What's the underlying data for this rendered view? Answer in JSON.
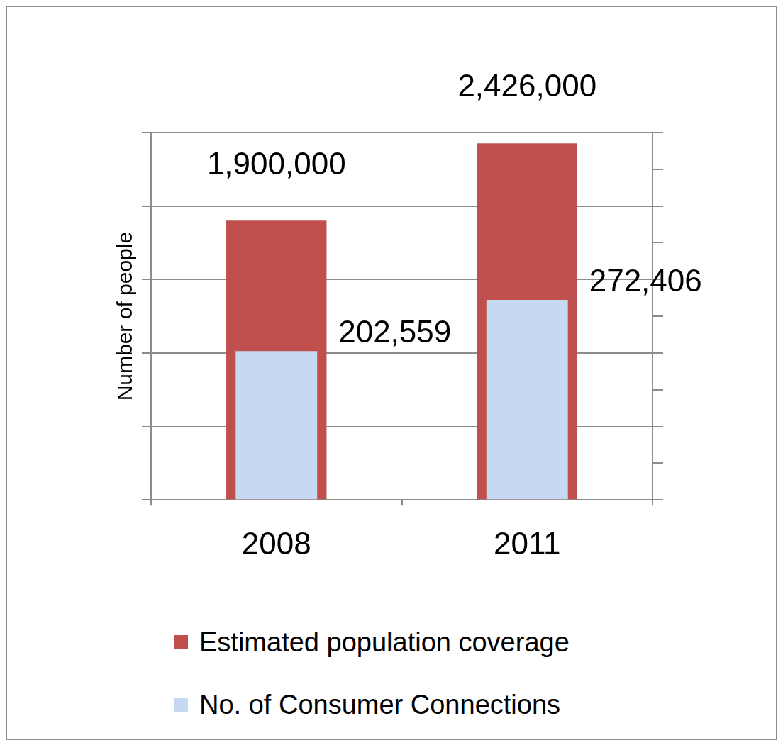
{
  "chart_data": {
    "type": "bar",
    "ylabel": "Number of people",
    "categories": [
      "2008",
      "2011"
    ],
    "series": [
      {
        "name": "Estimated population coverage",
        "color": "#c0504d",
        "values": [
          1900000,
          2426000
        ],
        "value_labels": [
          "1,900,000",
          "2,426,000"
        ]
      },
      {
        "name": "No. of Consumer Connections",
        "color": "#c6d9f0",
        "axis": "y2",
        "values": [
          202559,
          272406
        ],
        "value_labels": [
          "202,559",
          "272,406"
        ]
      }
    ],
    "ylim": [
      0,
      2500000
    ],
    "yticks": [
      0,
      500000,
      1000000,
      1500000,
      2000000,
      2500000
    ],
    "y2lim": [
      0,
      500000
    ],
    "y2ticks": [
      0,
      50000,
      100000,
      150000,
      200000,
      250000,
      300000,
      350000,
      400000,
      450000,
      500000
    ],
    "grid": true,
    "legend": "bottom",
    "data_labels": true,
    "tick_labels": "x"
  }
}
